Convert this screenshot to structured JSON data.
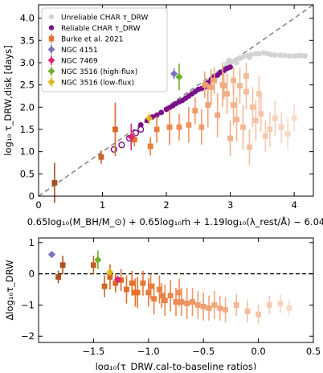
{
  "chart_data": [
    {
      "type": "scatter",
      "title": "",
      "xlabel": "0.65log₁₀(M_BH/M_⊙) + 0.65log₁₀ṁ + 1.19log₁₀(λ_rest/Å) − 6.04",
      "ylabel": "log₁₀ τ_DRW,disk [days]",
      "xlim": [
        0,
        4.3
      ],
      "ylim": [
        0,
        4.3
      ],
      "x_ticks": [
        "0",
        "1",
        "2",
        "3",
        "4"
      ],
      "y_ticks": [
        "0",
        "0.5",
        "1.0",
        "1.5",
        "2.0",
        "2.5",
        "3.0",
        "3.5",
        "4.0"
      ],
      "one_to_one_line": true,
      "legend_position": "top-left",
      "series": [
        {
          "name": "Unreliable CHAR τ_DRW",
          "color": "#d3d3d3",
          "marker": "circle",
          "x": [
            2.95,
            3.02,
            3.08,
            3.15,
            3.2,
            3.27,
            3.33,
            3.4,
            3.45,
            3.52,
            3.58,
            3.64,
            3.7,
            3.78,
            3.85,
            3.92,
            4.0,
            4.07,
            4.12,
            4.17,
            2.98,
            3.1,
            3.3
          ],
          "y": [
            2.97,
            3.02,
            3.05,
            3.1,
            3.13,
            3.16,
            3.18,
            3.2,
            3.2,
            3.22,
            3.2,
            3.18,
            3.17,
            3.17,
            3.16,
            3.15,
            3.15,
            3.16,
            3.16,
            3.15,
            3.05,
            3.0,
            3.12
          ]
        },
        {
          "name": "Reliable CHAR τ_DRW",
          "color": "#7a0f8a",
          "marker": "circle",
          "x": [
            1.6,
            1.7,
            1.78,
            1.85,
            1.92,
            2.0,
            2.05,
            2.1,
            2.15,
            2.2,
            2.25,
            2.3,
            2.35,
            2.4,
            2.45,
            2.5,
            2.55,
            2.6,
            2.65,
            2.7,
            2.75,
            2.8,
            2.85,
            2.9,
            2.95,
            3.0,
            2.6,
            2.72
          ],
          "y": [
            1.6,
            1.7,
            1.78,
            1.82,
            1.88,
            1.95,
            1.99,
            2.03,
            2.08,
            2.12,
            2.15,
            2.2,
            2.25,
            2.3,
            2.35,
            2.4,
            2.42,
            2.5,
            2.55,
            2.62,
            2.68,
            2.72,
            2.78,
            2.82,
            2.87,
            2.9,
            2.45,
            2.6
          ]
        },
        {
          "name": "Reliable CHAR τ_DRW (open)",
          "color": "#7a0f8a",
          "marker": "open-circle",
          "x": [
            1.18,
            1.3,
            1.42,
            1.52,
            1.6
          ],
          "y": [
            1.05,
            1.15,
            1.3,
            1.42,
            1.5
          ]
        },
        {
          "name": "Burke et al. 2021",
          "color": "#e8702a",
          "marker": "square",
          "x": [
            0.25,
            0.98,
            1.2,
            1.5,
            1.75,
            1.85,
            2.05,
            2.2,
            2.35,
            2.45,
            2.55,
            2.65,
            2.7,
            2.8,
            2.88,
            2.95,
            3.0,
            3.05,
            3.1,
            3.15,
            3.2,
            3.25,
            3.3,
            3.35,
            3.4,
            3.48,
            3.55,
            3.62,
            3.7,
            3.8,
            3.9,
            4.0,
            2.6,
            2.75,
            2.9,
            3.05,
            3.25,
            3.45
          ],
          "y": [
            0.3,
            0.88,
            1.5,
            1.27,
            1.12,
            1.5,
            1.55,
            1.55,
            1.6,
            1.92,
            1.55,
            2.05,
            2.45,
            1.82,
            2.5,
            2.3,
            1.3,
            2.05,
            1.72,
            2.48,
            1.55,
            2.35,
            1.1,
            2.0,
            1.7,
            1.85,
            1.35,
            1.5,
            1.75,
            1.55,
            1.4,
            1.75,
            2.5,
            2.6,
            2.48,
            2.6,
            2.7,
            2.3
          ],
          "y_err": [
            0.45,
            0.15,
            0.6,
            0.15,
            0.2,
            0.3,
            0.4,
            0.3,
            0.4,
            0.3,
            0.4,
            0.5,
            0.4,
            0.5,
            0.5,
            0.45,
            0.4,
            0.45,
            0.5,
            0.4,
            0.5,
            0.4,
            0.4,
            0.45,
            0.45,
            0.4,
            0.35,
            0.4,
            0.4,
            0.35,
            0.35,
            0.3,
            0.3,
            0.3,
            0.3,
            0.3,
            0.3,
            0.4
          ]
        },
        {
          "name": "NGC 4151",
          "color": "#7b72c2",
          "marker": "diamond",
          "x": [
            2.12
          ],
          "y": [
            2.75
          ],
          "y_err": [
            0.12
          ]
        },
        {
          "name": "NGC 7469",
          "color": "#e0247a",
          "marker": "diamond",
          "x": [
            1.45
          ],
          "y": [
            1.33
          ],
          "y_err": [
            0.3
          ]
        },
        {
          "name": "NGC 3516 (high-flux)",
          "color": "#6fb12c",
          "marker": "diamond",
          "x": [
            2.2
          ],
          "y": [
            2.68
          ],
          "y_err": [
            0.3
          ]
        },
        {
          "name": "NGC 3516 (low-flux)",
          "color": "#e3b51b",
          "marker": "diamond",
          "x": [
            1.73
          ],
          "y": [
            1.75
          ],
          "y_err": [
            0.12
          ]
        }
      ]
    },
    {
      "type": "scatter",
      "title": "",
      "xlabel": "log₁₀(τ_DRW,cal-to-baseline ratios)",
      "ylabel": "Δlog₁₀τ_DRW",
      "xlim": [
        -2.0,
        0.5
      ],
      "ylim": [
        -2.2,
        1.15
      ],
      "x_ticks": [
        "−1.5",
        "−1.0",
        "−0.5",
        "0.0",
        "0.5"
      ],
      "y_ticks": [
        "−2",
        "−1",
        "0",
        "1"
      ],
      "zero_line": true,
      "series": [
        {
          "name": "Burke et al. 2021",
          "color": "#e8702a",
          "marker": "square",
          "x": [
            -1.82,
            -1.78,
            -1.5,
            -1.4,
            -1.35,
            -1.3,
            -1.2,
            -1.15,
            -1.1,
            -1.05,
            -1.0,
            -0.95,
            -0.9,
            -0.85,
            -0.8,
            -0.75,
            -0.7,
            -0.65,
            -0.6,
            -0.55,
            -0.5,
            -0.45,
            -0.4,
            -0.35,
            -0.3,
            -0.2,
            -0.1,
            0.0,
            0.1,
            0.2,
            0.28,
            -1.25,
            -1.12,
            -0.98,
            -0.88,
            -0.72
          ],
          "y": [
            -0.1,
            0.28,
            0.28,
            -0.4,
            -0.1,
            -0.3,
            -0.5,
            -0.3,
            -0.6,
            -0.3,
            -0.6,
            -0.8,
            -0.5,
            -0.85,
            -0.7,
            -0.9,
            -0.9,
            -0.95,
            -0.9,
            -1.0,
            -1.05,
            -1.1,
            -1.0,
            -1.1,
            -1.15,
            -1.0,
            -1.2,
            -1.3,
            -1.0,
            -0.95,
            -1.1,
            -0.2,
            -0.6,
            -0.4,
            -0.7,
            -0.6
          ],
          "y_err": [
            0.2,
            0.3,
            0.3,
            0.35,
            0.4,
            0.3,
            0.45,
            0.4,
            0.5,
            0.4,
            0.45,
            0.5,
            0.45,
            0.5,
            0.5,
            0.45,
            0.45,
            0.5,
            0.45,
            0.45,
            0.45,
            0.4,
            0.45,
            0.4,
            0.4,
            0.35,
            0.35,
            0.3,
            0.3,
            0.3,
            0.25,
            0.35,
            0.45,
            0.4,
            0.4,
            0.45
          ]
        },
        {
          "name": "NGC 4151",
          "color": "#7b72c2",
          "marker": "diamond",
          "x": [
            -1.88
          ],
          "y": [
            0.62
          ],
          "y_err": [
            0
          ]
        },
        {
          "name": "NGC 7469",
          "color": "#e0247a",
          "marker": "diamond",
          "x": [
            -1.28
          ],
          "y": [
            -0.18
          ],
          "y_err": [
            0
          ]
        },
        {
          "name": "NGC 3516 (high-flux)",
          "color": "#6fb12c",
          "marker": "diamond",
          "x": [
            -1.46
          ],
          "y": [
            0.45
          ],
          "y_err": [
            0.3
          ]
        },
        {
          "name": "NGC 3516 (low-flux)",
          "color": "#e3b51b",
          "marker": "diamond",
          "x": [
            -1.35
          ],
          "y": [
            0.05
          ],
          "y_err": [
            0
          ]
        }
      ]
    }
  ]
}
